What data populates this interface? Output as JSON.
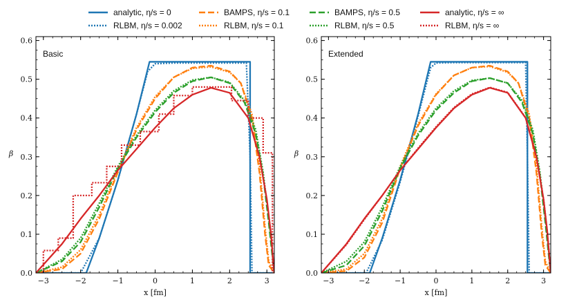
{
  "legend": [
    {
      "label": "analytic, η/s = 0",
      "color": "#1f77b4",
      "dash": "solid"
    },
    {
      "label": "RLBM, η/s = 0.002",
      "color": "#1f77b4",
      "dash": "dotted"
    },
    {
      "label": "BAMPS, η/s = 0.1",
      "color": "#ff7f0e",
      "dash": "dashed"
    },
    {
      "label": "RLBM, η/s = 0.1",
      "color": "#ff7f0e",
      "dash": "dotted"
    },
    {
      "label": "BAMPS, η/s = 0.5",
      "color": "#2ca02c",
      "dash": "dashed"
    },
    {
      "label": "RLBM, η/s = 0.5",
      "color": "#2ca02c",
      "dash": "dotted"
    },
    {
      "label": "analytic, η/s = ∞",
      "color": "#d62728",
      "dash": "solid"
    },
    {
      "label": "RLBM, η/s = ∞",
      "color": "#d62728",
      "dash": "dotted"
    }
  ],
  "chart_data": [
    {
      "type": "line",
      "panel_label": "Basic",
      "xlabel": "x [fm]",
      "ylabel": "β",
      "xlim": [
        -3.2,
        3.2
      ],
      "ylim": [
        0,
        0.61
      ],
      "xticks": [
        -3,
        -2,
        -1,
        0,
        1,
        2,
        3
      ],
      "yticks": [
        0.0,
        0.1,
        0.2,
        0.3,
        0.4,
        0.5,
        0.6
      ],
      "grid": false,
      "series": [
        {
          "name": "analytic, η/s = 0",
          "color": "#1f77b4",
          "dash": "solid",
          "x": [
            -3.2,
            -1.85,
            -1.5,
            -1.0,
            -0.5,
            -0.15,
            2.55,
            2.55,
            3.2
          ],
          "y": [
            0,
            0,
            0.09,
            0.24,
            0.41,
            0.545,
            0.545,
            0,
            0
          ]
        },
        {
          "name": "RLBM, η/s = 0.002",
          "color": "#1f77b4",
          "dash": "dotted",
          "x": [
            -3.2,
            -2.0,
            -1.5,
            -1.0,
            -0.5,
            -0.2,
            0.0,
            0.5,
            2.45,
            2.55,
            2.6,
            3.2
          ],
          "y": [
            0,
            0,
            0.09,
            0.24,
            0.41,
            0.52,
            0.54,
            0.542,
            0.542,
            0.3,
            0,
            0
          ]
        },
        {
          "name": "BAMPS, η/s = 0.1",
          "color": "#ff7f0e",
          "dash": "dashed",
          "x": [
            -3.2,
            -2.5,
            -2.0,
            -1.5,
            -1.0,
            -0.5,
            0.0,
            0.5,
            1.0,
            1.5,
            2.0,
            2.3,
            2.6,
            2.8,
            2.95,
            3.05,
            3.2
          ],
          "y": [
            0,
            0.01,
            0.05,
            0.14,
            0.26,
            0.37,
            0.45,
            0.505,
            0.53,
            0.535,
            0.52,
            0.49,
            0.4,
            0.26,
            0.1,
            0.02,
            0
          ]
        },
        {
          "name": "RLBM, η/s = 0.1",
          "color": "#ff7f0e",
          "dash": "dotted",
          "x": [
            -3.2,
            -2.5,
            -2.0,
            -1.5,
            -1.0,
            -0.5,
            0.0,
            0.5,
            1.0,
            1.5,
            2.0,
            2.3,
            2.6,
            2.8,
            2.95,
            3.05,
            3.2
          ],
          "y": [
            0,
            0.015,
            0.06,
            0.15,
            0.265,
            0.375,
            0.455,
            0.505,
            0.528,
            0.532,
            0.518,
            0.49,
            0.41,
            0.28,
            0.12,
            0.03,
            0
          ]
        },
        {
          "name": "BAMPS, η/s = 0.5",
          "color": "#2ca02c",
          "dash": "dashed",
          "x": [
            -3.2,
            -2.5,
            -2.0,
            -1.5,
            -1.0,
            -0.5,
            0.0,
            0.5,
            1.0,
            1.5,
            2.0,
            2.4,
            2.7,
            2.9,
            3.05,
            3.15,
            3.2
          ],
          "y": [
            0,
            0.03,
            0.08,
            0.17,
            0.27,
            0.35,
            0.415,
            0.465,
            0.495,
            0.505,
            0.49,
            0.44,
            0.36,
            0.25,
            0.13,
            0.04,
            0
          ]
        },
        {
          "name": "RLBM, η/s = 0.5",
          "color": "#2ca02c",
          "dash": "dotted",
          "x": [
            -3.2,
            -2.5,
            -2.0,
            -1.5,
            -1.0,
            -0.5,
            0.0,
            0.5,
            1.0,
            1.5,
            2.0,
            2.4,
            2.7,
            2.9,
            3.05,
            3.15,
            3.2
          ],
          "y": [
            0,
            0.035,
            0.09,
            0.18,
            0.275,
            0.355,
            0.42,
            0.47,
            0.498,
            0.505,
            0.492,
            0.445,
            0.37,
            0.26,
            0.14,
            0.05,
            0
          ]
        },
        {
          "name": "analytic, η/s = ∞",
          "color": "#d62728",
          "dash": "solid",
          "x": [
            -3.2,
            -2.5,
            -2.0,
            -1.5,
            -1.0,
            -0.5,
            0.0,
            0.5,
            1.0,
            1.5,
            2.0,
            2.5,
            2.8,
            3.0,
            3.1,
            3.2
          ],
          "y": [
            0,
            0.075,
            0.14,
            0.2,
            0.265,
            0.32,
            0.375,
            0.425,
            0.46,
            0.478,
            0.465,
            0.4,
            0.3,
            0.19,
            0.11,
            0
          ]
        },
        {
          "name": "RLBM, η/s = ∞",
          "color": "#d62728",
          "dash": "dotted",
          "x": [
            -3.2,
            -3.0,
            -3.0,
            -2.6,
            -2.6,
            -2.2,
            -2.2,
            -1.7,
            -1.7,
            -1.3,
            -1.3,
            -0.9,
            -0.9,
            -0.4,
            -0.4,
            0.1,
            0.1,
            0.5,
            0.5,
            1.0,
            1.0,
            2.05,
            2.05,
            2.5,
            2.5,
            2.9,
            2.9,
            3.15,
            3.15,
            3.2
          ],
          "y": [
            0,
            0,
            0.058,
            0.058,
            0.09,
            0.09,
            0.2,
            0.2,
            0.233,
            0.233,
            0.275,
            0.275,
            0.33,
            0.33,
            0.365,
            0.365,
            0.41,
            0.41,
            0.458,
            0.458,
            0.48,
            0.48,
            0.445,
            0.445,
            0.4,
            0.4,
            0.31,
            0.31,
            0.0,
            0.0
          ]
        }
      ]
    },
    {
      "type": "line",
      "panel_label": "Extended",
      "xlabel": "x [fm]",
      "ylabel": "β",
      "xlim": [
        -3.2,
        3.2
      ],
      "ylim": [
        0,
        0.61
      ],
      "xticks": [
        -3,
        -2,
        -1,
        0,
        1,
        2,
        3
      ],
      "yticks": [
        0.0,
        0.1,
        0.2,
        0.3,
        0.4,
        0.5,
        0.6
      ],
      "grid": false,
      "series": [
        {
          "name": "analytic, η/s = 0",
          "color": "#1f77b4",
          "dash": "solid",
          "x": [
            -3.2,
            -1.85,
            -1.5,
            -1.0,
            -0.5,
            -0.15,
            2.55,
            2.55,
            3.2
          ],
          "y": [
            0,
            0,
            0.09,
            0.24,
            0.41,
            0.545,
            0.545,
            0,
            0
          ]
        },
        {
          "name": "RLBM, η/s = 0.002",
          "color": "#1f77b4",
          "dash": "dotted",
          "x": [
            -3.2,
            -1.95,
            -1.5,
            -1.0,
            -0.5,
            -0.15,
            0.0,
            0.5,
            2.5,
            2.55,
            2.6,
            3.2
          ],
          "y": [
            0,
            0,
            0.085,
            0.235,
            0.405,
            0.53,
            0.542,
            0.543,
            0.543,
            0.3,
            0,
            0
          ]
        },
        {
          "name": "BAMPS, η/s = 0.1",
          "color": "#ff7f0e",
          "dash": "dashed",
          "x": [
            -3.2,
            -2.5,
            -2.0,
            -1.5,
            -1.0,
            -0.5,
            0.0,
            0.5,
            1.0,
            1.5,
            2.0,
            2.3,
            2.6,
            2.8,
            2.95,
            3.05,
            3.2
          ],
          "y": [
            0,
            0.005,
            0.04,
            0.13,
            0.27,
            0.38,
            0.46,
            0.51,
            0.53,
            0.535,
            0.52,
            0.49,
            0.4,
            0.26,
            0.1,
            0.02,
            0
          ]
        },
        {
          "name": "RLBM, η/s = 0.1",
          "color": "#ff7f0e",
          "dash": "dotted",
          "x": [
            -3.2,
            -2.5,
            -2.0,
            -1.5,
            -1.0,
            -0.5,
            0.0,
            0.5,
            1.0,
            1.5,
            2.0,
            2.3,
            2.6,
            2.8,
            2.95,
            3.05,
            3.2
          ],
          "y": [
            0,
            0.01,
            0.05,
            0.14,
            0.275,
            0.385,
            0.462,
            0.51,
            0.53,
            0.533,
            0.518,
            0.49,
            0.41,
            0.28,
            0.12,
            0.03,
            0
          ]
        },
        {
          "name": "BAMPS, η/s = 0.5",
          "color": "#2ca02c",
          "dash": "dashed",
          "x": [
            -3.2,
            -2.5,
            -2.0,
            -1.5,
            -1.0,
            -0.5,
            0.0,
            0.5,
            1.0,
            1.5,
            2.0,
            2.4,
            2.7,
            2.9,
            3.05,
            3.15,
            3.2
          ],
          "y": [
            0,
            0.02,
            0.07,
            0.16,
            0.27,
            0.355,
            0.42,
            0.465,
            0.495,
            0.503,
            0.49,
            0.44,
            0.36,
            0.25,
            0.13,
            0.04,
            0
          ]
        },
        {
          "name": "RLBM, η/s = 0.5",
          "color": "#2ca02c",
          "dash": "dotted",
          "x": [
            -3.2,
            -2.5,
            -2.0,
            -1.5,
            -1.0,
            -0.5,
            0.0,
            0.5,
            1.0,
            1.5,
            2.0,
            2.4,
            2.7,
            2.9,
            3.05,
            3.15,
            3.2
          ],
          "y": [
            0,
            0.03,
            0.08,
            0.17,
            0.275,
            0.36,
            0.425,
            0.47,
            0.497,
            0.503,
            0.49,
            0.445,
            0.37,
            0.26,
            0.14,
            0.05,
            0
          ]
        },
        {
          "name": "analytic, η/s = ∞",
          "color": "#d62728",
          "dash": "solid",
          "x": [
            -3.2,
            -2.5,
            -2.0,
            -1.5,
            -1.0,
            -0.5,
            0.0,
            0.5,
            1.0,
            1.5,
            2.0,
            2.5,
            2.8,
            3.0,
            3.1,
            3.2
          ],
          "y": [
            0,
            0.075,
            0.14,
            0.2,
            0.265,
            0.32,
            0.375,
            0.425,
            0.46,
            0.478,
            0.465,
            0.4,
            0.3,
            0.19,
            0.11,
            0
          ]
        },
        {
          "name": "RLBM, η/s = ∞",
          "color": "#d62728",
          "dash": "dotted",
          "x": [
            -3.2,
            -2.5,
            -2.0,
            -1.5,
            -1.0,
            -0.5,
            0.0,
            0.5,
            1.0,
            1.5,
            2.0,
            2.5,
            2.8,
            3.0,
            3.1,
            3.2
          ],
          "y": [
            0,
            0.073,
            0.138,
            0.2,
            0.265,
            0.322,
            0.377,
            0.427,
            0.462,
            0.479,
            0.466,
            0.401,
            0.3,
            0.19,
            0.11,
            0
          ]
        }
      ]
    }
  ]
}
